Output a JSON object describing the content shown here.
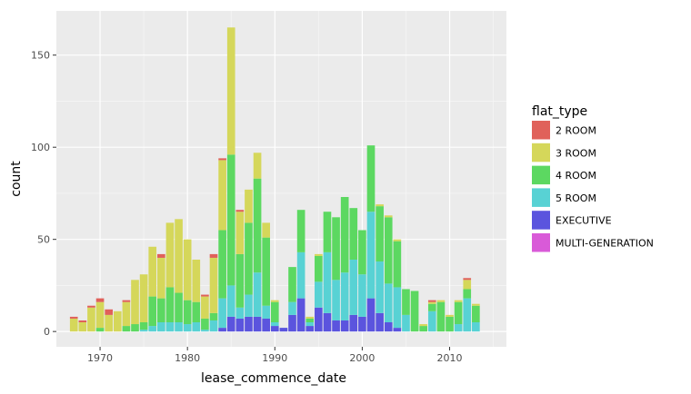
{
  "chart_data": {
    "type": "bar",
    "stacked": true,
    "xlabel": "lease_commence_date",
    "ylabel": "count",
    "xlim": [
      1965,
      2016.5
    ],
    "ylim": [
      -8.3,
      174
    ],
    "xticks": [
      "1970",
      "1980",
      "1990",
      "2000",
      "2010"
    ],
    "yticks": [
      "0",
      "50",
      "100",
      "150"
    ],
    "grid": true,
    "legend_position": "right",
    "legend_title": "flat_type",
    "categories": [
      1967,
      1968,
      1969,
      1970,
      1971,
      1972,
      1973,
      1974,
      1975,
      1976,
      1977,
      1978,
      1979,
      1980,
      1981,
      1982,
      1983,
      1984,
      1985,
      1986,
      1987,
      1988,
      1989,
      1990,
      1991,
      1992,
      1993,
      1994,
      1995,
      1996,
      1997,
      1998,
      1999,
      2000,
      2001,
      2002,
      2003,
      2004,
      2005,
      2006,
      2007,
      2008,
      2009,
      2010,
      2011,
      2012,
      2013
    ],
    "series": [
      {
        "name": "2 ROOM",
        "color": "#e0615a",
        "values": [
          1,
          1,
          1,
          2,
          3,
          0,
          1,
          0,
          0,
          0,
          2,
          0,
          0,
          0,
          0,
          1,
          2,
          1,
          0,
          1,
          0,
          0,
          0,
          0,
          0,
          0,
          0,
          0,
          0,
          0,
          0,
          0,
          0,
          0,
          0,
          0,
          0,
          0,
          0,
          0,
          0,
          1,
          0,
          0,
          0,
          1,
          0
        ]
      },
      {
        "name": "3 ROOM",
        "color": "#d5d75a",
        "values": [
          7,
          5,
          13,
          14,
          9,
          11,
          13,
          24,
          26,
          27,
          22,
          35,
          40,
          33,
          23,
          12,
          30,
          38,
          69,
          23,
          18,
          14,
          8,
          1,
          0,
          0,
          0,
          1,
          1,
          0,
          0,
          0,
          0,
          0,
          0,
          1,
          1,
          1,
          0,
          0,
          1,
          1,
          1,
          1,
          1,
          5,
          1
        ]
      },
      {
        "name": "4 ROOM",
        "color": "#5cd861",
        "values": [
          0,
          0,
          0,
          2,
          0,
          0,
          3,
          4,
          4,
          16,
          13,
          19,
          16,
          13,
          11,
          6,
          4,
          37,
          71,
          29,
          39,
          51,
          37,
          11,
          0,
          19,
          23,
          2,
          14,
          22,
          34,
          41,
          28,
          24,
          36,
          30,
          36,
          25,
          14,
          22,
          3,
          4,
          16,
          8,
          12,
          5,
          9
        ]
      },
      {
        "name": "5 ROOM",
        "color": "#58d2d4",
        "values": [
          0,
          0,
          0,
          0,
          0,
          0,
          0,
          0,
          1,
          3,
          5,
          5,
          5,
          4,
          5,
          1,
          6,
          16,
          17,
          6,
          12,
          24,
          7,
          2,
          0,
          7,
          25,
          2,
          14,
          33,
          22,
          26,
          30,
          23,
          47,
          28,
          21,
          22,
          9,
          0,
          0,
          11,
          0,
          0,
          4,
          18,
          5
        ]
      },
      {
        "name": "EXECUTIVE",
        "color": "#5b54de",
        "values": [
          0,
          0,
          0,
          0,
          0,
          0,
          0,
          0,
          0,
          0,
          0,
          0,
          0,
          0,
          0,
          0,
          0,
          2,
          8,
          7,
          8,
          8,
          7,
          3,
          2,
          9,
          18,
          3,
          13,
          10,
          6,
          6,
          9,
          8,
          18,
          10,
          5,
          2,
          0,
          0,
          0,
          0,
          0,
          0,
          0,
          0,
          0
        ]
      },
      {
        "name": "MULTI-GENERATION",
        "color": "#d95ad8",
        "values": [
          0,
          0,
          0,
          0,
          0,
          0,
          0,
          0,
          0,
          0,
          0,
          0,
          0,
          0,
          0,
          0,
          0,
          0,
          0,
          0,
          0,
          0,
          0,
          0,
          0,
          0,
          0,
          0,
          0,
          0,
          0,
          0,
          0,
          0,
          0,
          0,
          0,
          0,
          0,
          0,
          0,
          0,
          0,
          0,
          0,
          0,
          0
        ]
      }
    ]
  }
}
